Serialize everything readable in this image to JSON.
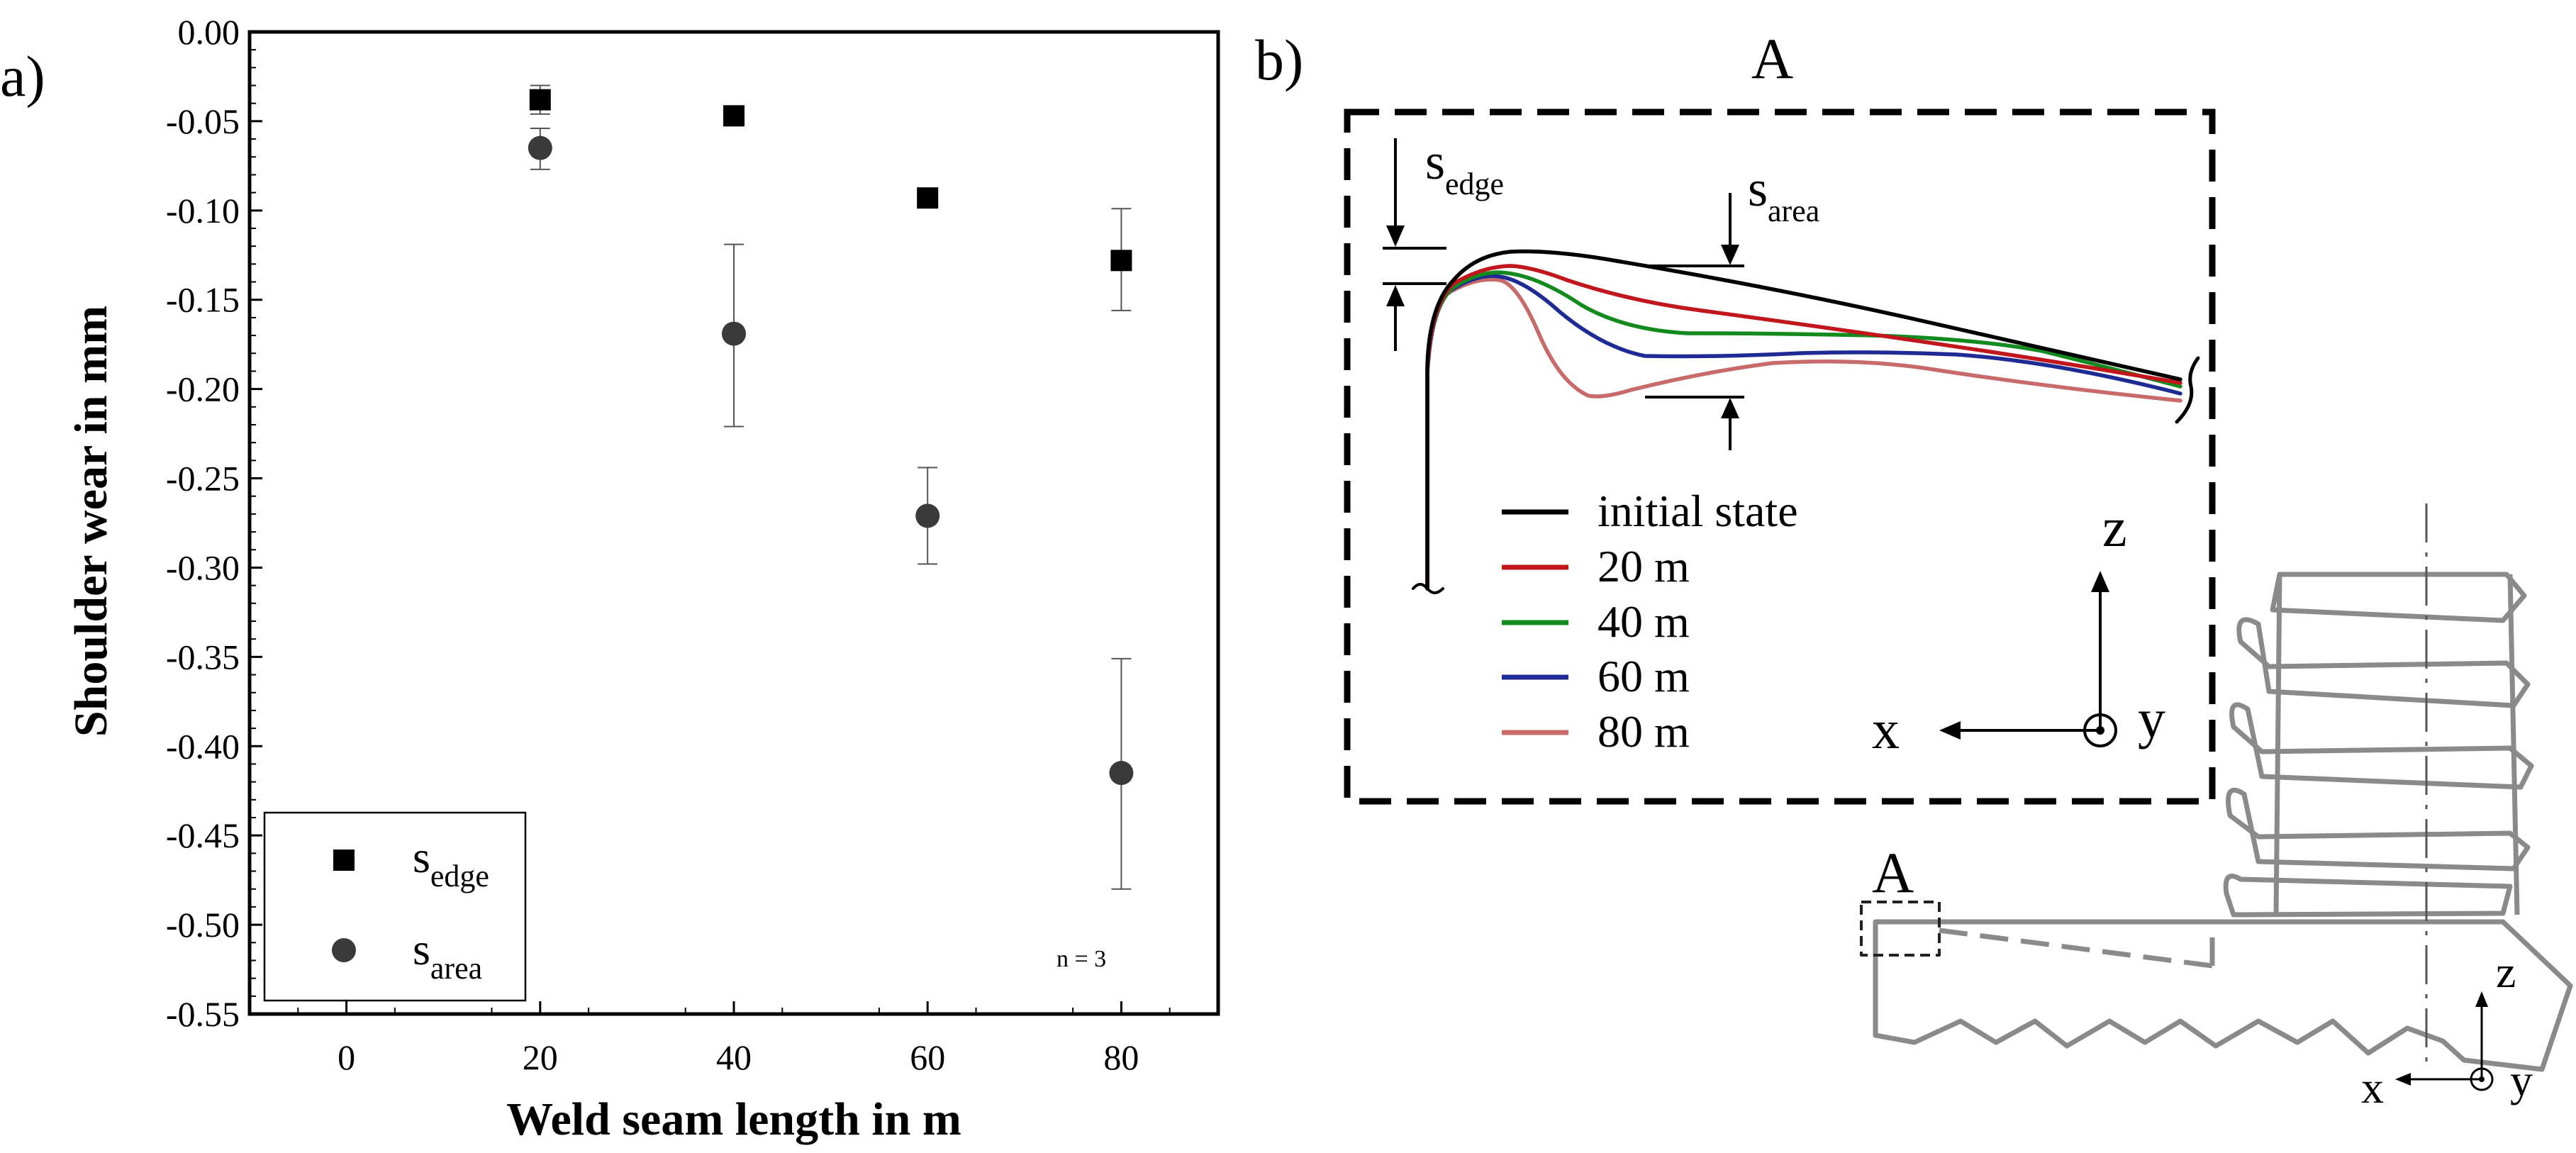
{
  "panel_a": {
    "label": "a)",
    "chart_data": {
      "type": "scatter",
      "title": "",
      "xlabel": "Weld seam length in m",
      "ylabel": "Shoulder wear in mm",
      "xlim": [
        -10,
        90
      ],
      "ylim": [
        -0.55,
        0.0
      ],
      "xticks": [
        0,
        20,
        40,
        60,
        80
      ],
      "xtick_labels": [
        "0",
        "20",
        "40",
        "60",
        "80"
      ],
      "yticks": [
        0.0,
        -0.05,
        -0.1,
        -0.15,
        -0.2,
        -0.25,
        -0.3,
        -0.35,
        -0.4,
        -0.45,
        -0.5,
        -0.55
      ],
      "ytick_labels": [
        "0.00",
        "-0.05",
        "-0.10",
        "-0.15",
        "-0.20",
        "-0.25",
        "-0.30",
        "-0.35",
        "-0.40",
        "-0.45",
        "-0.50",
        "-0.55"
      ],
      "series": [
        {
          "name": "s_edge",
          "label_main": "s",
          "label_sub": "edge",
          "marker": "square",
          "color": "#000000",
          "x": [
            20,
            40,
            60,
            80
          ],
          "y": [
            -0.038,
            -0.047,
            -0.093,
            -0.128
          ],
          "err_low": [
            -0.046,
            null,
            null,
            -0.156
          ],
          "err_high": [
            -0.03,
            null,
            null,
            -0.099
          ]
        },
        {
          "name": "s_area",
          "label_main": "s",
          "label_sub": "area",
          "marker": "circle",
          "color": "#3a3a3a",
          "x": [
            20,
            40,
            60,
            80
          ],
          "y": [
            -0.065,
            -0.169,
            -0.271,
            -0.415
          ],
          "err_low": [
            -0.077,
            -0.221,
            -0.298,
            -0.48
          ],
          "err_high": [
            -0.054,
            -0.119,
            -0.244,
            -0.351
          ]
        }
      ],
      "legend_position": "bottom-left",
      "annotation": "n = 3"
    }
  },
  "panel_b": {
    "label": "b)",
    "detail_label": "A",
    "detail_ref_label": "A",
    "s_edge_main": "s",
    "s_edge_sub": "edge",
    "s_area_main": "s",
    "s_area_sub": "area",
    "legend": [
      {
        "label": "initial state",
        "color": "#000000"
      },
      {
        "label": "20 m",
        "color": "#c0161c"
      },
      {
        "label": "40 m",
        "color": "#138a1e"
      },
      {
        "label": "60 m",
        "color": "#1f2b94"
      },
      {
        "label": "80 m",
        "color": "#c86a6a"
      }
    ],
    "coord_large": {
      "x": "x",
      "y": "y",
      "z": "z"
    },
    "coord_small": {
      "x": "x",
      "y": "y",
      "z": "z"
    }
  }
}
